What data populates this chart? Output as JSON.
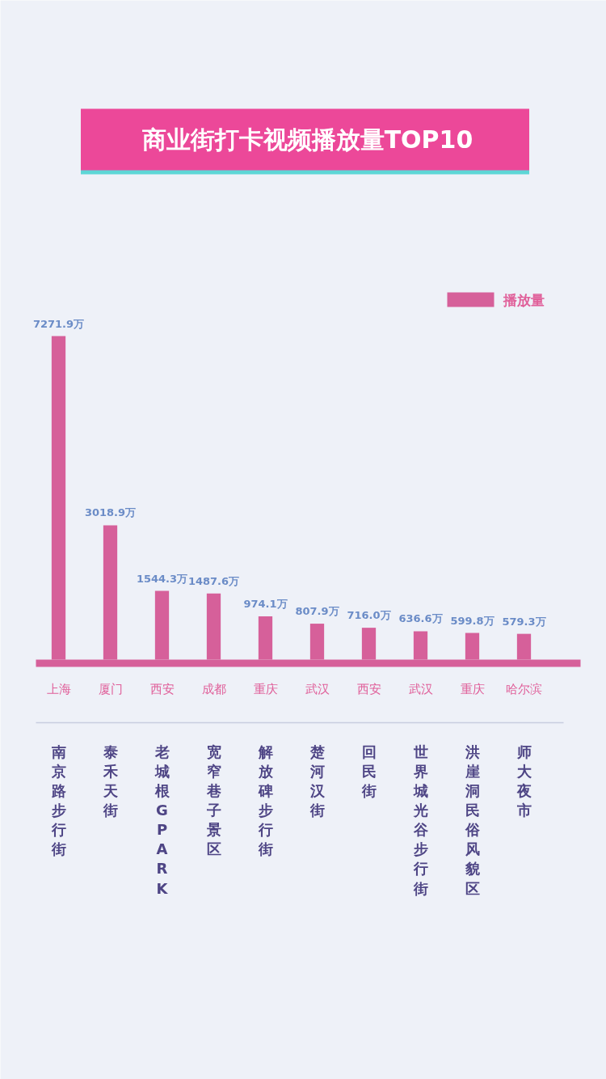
{
  "chart_data": {
    "type": "bar",
    "title": "商业街打卡视频播放量TOP10",
    "categories": [
      "南京路步行街",
      "泰禾天街",
      "老城根G PARK",
      "宽窄巷子景区",
      "解放碑步行街",
      "楚河汉街",
      "回民街",
      "世界城光谷步行街",
      "洪崖洞民俗风貌区",
      "师大夜市"
    ],
    "series": [
      {
        "name": "播放量",
        "color": "#d6609a",
        "values": [
          7271.9,
          3018.9,
          1544.3,
          1487.6,
          974.1,
          807.9,
          716.0,
          636.6,
          599.8,
          579.3
        ],
        "value_labels": [
          "7271.9万",
          "3018.9万",
          "1544.3万",
          "1487.6万",
          "974.1万",
          "807.9万",
          "716.0万",
          "636.6万",
          "599.8万",
          "579.3万"
        ]
      }
    ],
    "annotations": [
      "上海",
      "厦门",
      "西安",
      "成都",
      "重庆",
      "武汉",
      "西安",
      "武汉",
      "重庆",
      "哈尔滨"
    ],
    "legend": "top right"
  }
}
